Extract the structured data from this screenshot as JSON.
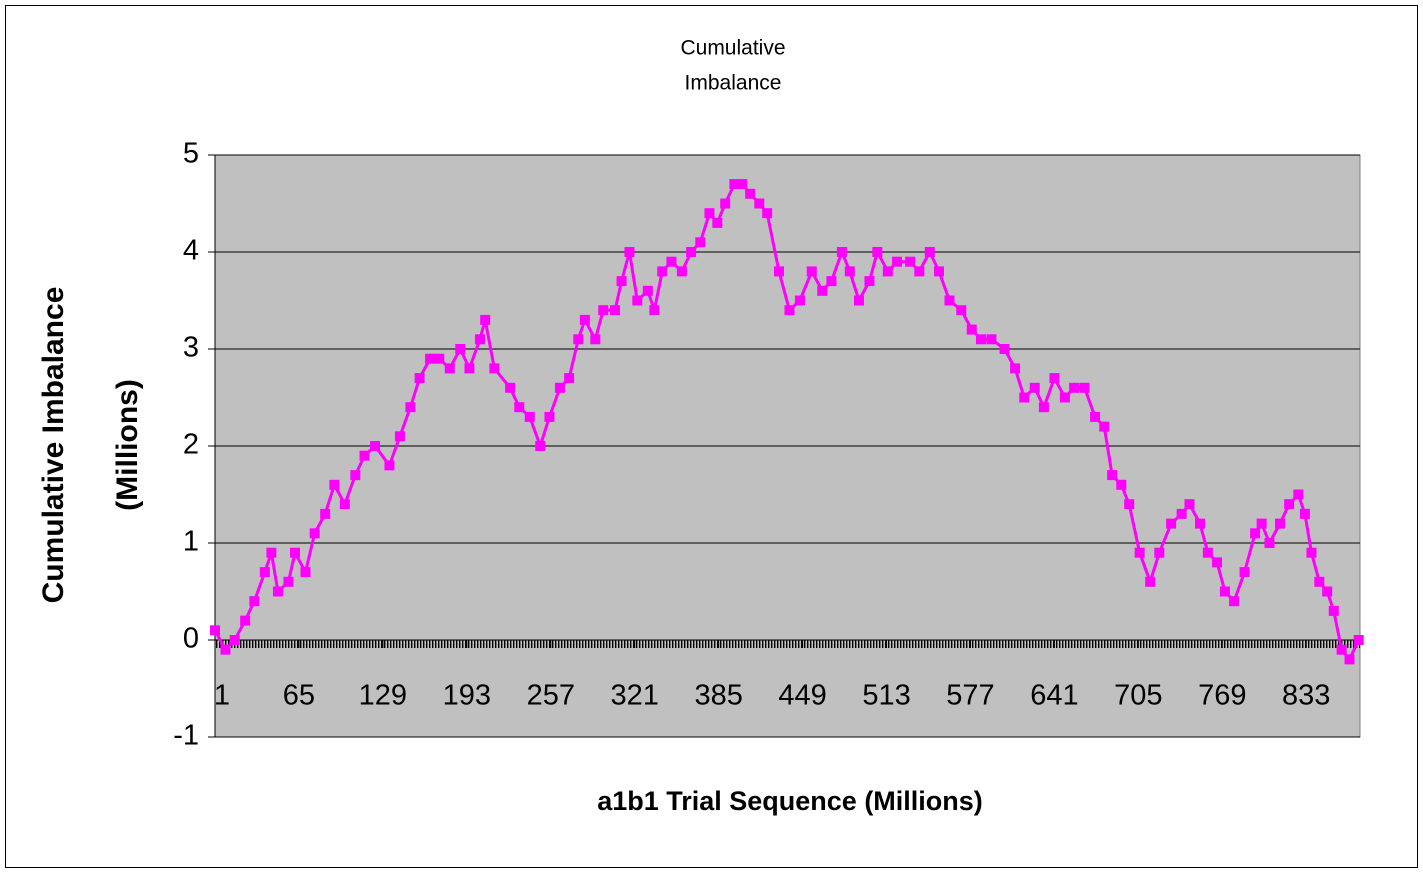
{
  "chart_data": {
    "type": "line",
    "title": [
      "Cumulative",
      "Imbalance"
    ],
    "x_label": "a1b1 Trial Sequence (Millions)",
    "y_label": [
      "Cumulative Imbalance",
      "(Millions)"
    ],
    "x": [
      1,
      9,
      16,
      24,
      31,
      39,
      44,
      49,
      57,
      62,
      70,
      77,
      85,
      92,
      100,
      108,
      115,
      123,
      134,
      142,
      150,
      157,
      165,
      172,
      180,
      188,
      195,
      203,
      207,
      214,
      226,
      233,
      241,
      249,
      256,
      264,
      271,
      278,
      283,
      291,
      297,
      306,
      311,
      317,
      323,
      331,
      336,
      342,
      349,
      357,
      364,
      371,
      378,
      384,
      390,
      397,
      403,
      409,
      416,
      422,
      431,
      439,
      447,
      456,
      464,
      471,
      479,
      485,
      492,
      500,
      506,
      514,
      521,
      531,
      538,
      546,
      553,
      561,
      570,
      578,
      585,
      593,
      603,
      611,
      618,
      626,
      633,
      641,
      649,
      656,
      664,
      672,
      679,
      685,
      692,
      698,
      706,
      714,
      721,
      730,
      738,
      744,
      752,
      758,
      765,
      771,
      778,
      786,
      794,
      799,
      805,
      813,
      820,
      827,
      832,
      837,
      843,
      849,
      854,
      860,
      866,
      873
    ],
    "series": [
      {
        "name": "Cumulative Imbalance",
        "color": "#ff00ff",
        "values": [
          0.1,
          -0.1,
          0.0,
          0.2,
          0.4,
          0.7,
          0.9,
          0.5,
          0.6,
          0.9,
          0.7,
          1.1,
          1.3,
          1.6,
          1.4,
          1.7,
          1.9,
          2.0,
          1.8,
          2.1,
          2.4,
          2.7,
          2.9,
          2.9,
          2.8,
          3.0,
          2.8,
          3.1,
          3.3,
          2.8,
          2.6,
          2.4,
          2.3,
          2.0,
          2.3,
          2.6,
          2.7,
          3.1,
          3.3,
          3.1,
          3.4,
          3.4,
          3.7,
          4.0,
          3.5,
          3.6,
          3.4,
          3.8,
          3.9,
          3.8,
          4.0,
          4.1,
          4.4,
          4.3,
          4.5,
          4.7,
          4.7,
          4.6,
          4.5,
          4.4,
          3.8,
          3.4,
          3.5,
          3.8,
          3.6,
          3.7,
          4.0,
          3.8,
          3.5,
          3.7,
          4.0,
          3.8,
          3.9,
          3.9,
          3.8,
          4.0,
          3.8,
          3.5,
          3.4,
          3.2,
          3.1,
          3.1,
          3.0,
          2.8,
          2.5,
          2.6,
          2.4,
          2.7,
          2.5,
          2.6,
          2.6,
          2.3,
          2.2,
          1.7,
          1.6,
          1.4,
          0.9,
          0.6,
          0.9,
          1.2,
          1.3,
          1.4,
          1.2,
          0.9,
          0.8,
          0.5,
          0.4,
          0.7,
          1.1,
          1.2,
          1.0,
          1.2,
          1.4,
          1.5,
          1.3,
          0.9,
          0.6,
          0.5,
          0.3,
          -0.1,
          -0.2,
          0.0
        ]
      }
    ],
    "xlim": [
      1,
      874
    ],
    "xticks": [
      1,
      65,
      129,
      193,
      257,
      321,
      385,
      449,
      513,
      577,
      641,
      705,
      769,
      833
    ],
    "ylim": [
      -1,
      5
    ],
    "yticks": [
      -1,
      0,
      1,
      2,
      3,
      4,
      5
    ],
    "grid": true,
    "plot_background": "#c0c0c0"
  }
}
